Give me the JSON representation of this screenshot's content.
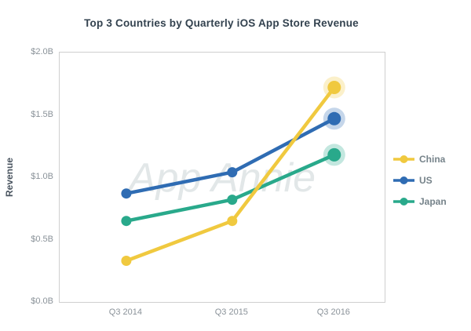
{
  "title": "Top 3 Countries by Quarterly iOS App Store Revenue",
  "watermark": "App Annie",
  "chart_data": {
    "type": "line",
    "title": "Top 3 Countries by Quarterly iOS App Store Revenue",
    "categories": [
      "Q3 2014",
      "Q3 2015",
      "Q3 2016"
    ],
    "series": [
      {
        "name": "China",
        "color": "#F0C93F",
        "values": [
          0.33,
          0.65,
          1.72
        ]
      },
      {
        "name": "US",
        "color": "#2F6CB3",
        "values": [
          0.87,
          1.04,
          1.47
        ]
      },
      {
        "name": "Japan",
        "color": "#29A98B",
        "values": [
          0.65,
          0.82,
          1.18
        ]
      }
    ],
    "xlabel": "",
    "ylabel": "Revenue",
    "ylim": [
      0,
      2.0
    ],
    "yticks": [
      {
        "value": 2.0,
        "label": "$2.0B"
      },
      {
        "value": 1.5,
        "label": "$1.5B"
      },
      {
        "value": 1.0,
        "label": "$1.0B"
      },
      {
        "value": 0.5,
        "label": "$0.5B"
      },
      {
        "value": 0.0,
        "label": "$0.0B"
      }
    ],
    "grid": false,
    "legend_position": "right"
  }
}
